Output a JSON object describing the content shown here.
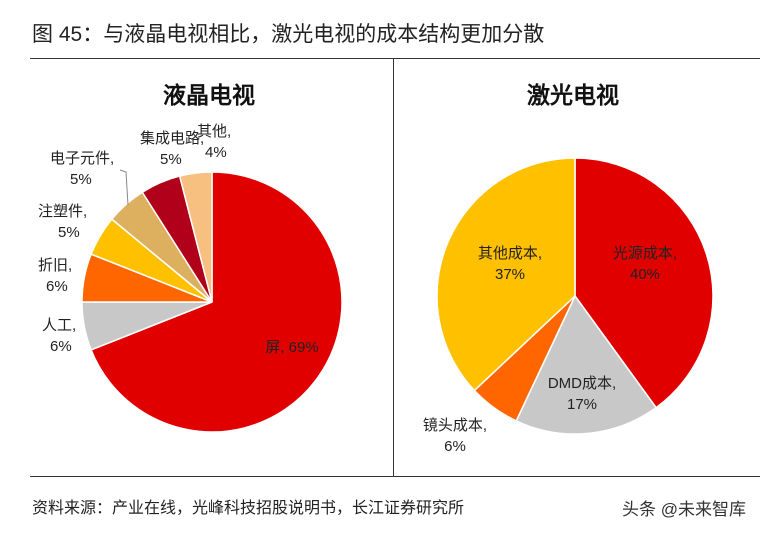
{
  "title": "图 45：与液晶电视相比，激光电视的成本结构更加分散",
  "source": "资料来源：产业在线，光峰科技招股说明书，长江证券研究所",
  "watermark": "头条 @未来智库",
  "chart_data": [
    {
      "type": "pie",
      "title": "液晶电视",
      "slices": [
        {
          "label": "屏",
          "value": 69,
          "color": "#E00000"
        },
        {
          "label": "人工",
          "value": 6,
          "color": "#C8C8C8"
        },
        {
          "label": "折旧",
          "value": 6,
          "color": "#FF6600"
        },
        {
          "label": "注塑件",
          "value": 5,
          "color": "#FFC000"
        },
        {
          "label": "电子元件",
          "value": 5,
          "color": "#DDB060"
        },
        {
          "label": "集成电路",
          "value": 5,
          "color": "#B0001A"
        },
        {
          "label": "其他",
          "value": 4,
          "color": "#F8C080"
        }
      ]
    },
    {
      "type": "pie",
      "title": "激光电视",
      "slices": [
        {
          "label": "光源成本",
          "value": 40,
          "color": "#E00000"
        },
        {
          "label": "DMD成本",
          "value": 17,
          "color": "#C8C8C8"
        },
        {
          "label": "镜头成本",
          "value": 6,
          "color": "#FF6600"
        },
        {
          "label": "其他成本",
          "value": 37,
          "color": "#FFC000"
        }
      ]
    }
  ]
}
